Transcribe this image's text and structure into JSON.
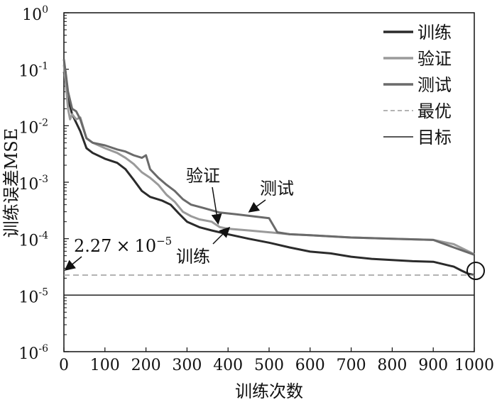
{
  "chart_data": {
    "type": "line",
    "title": "",
    "xlabel": "训练次数",
    "ylabel": "训练误差MSE",
    "xlim": [
      0,
      1000
    ],
    "ylim": [
      1e-06,
      1
    ],
    "yscale": "log",
    "grid": false,
    "legend_position": "top-right",
    "x_ticks": [
      0,
      100,
      200,
      300,
      400,
      500,
      600,
      700,
      800,
      900,
      1000
    ],
    "y_ticks": [
      {
        "base": "10",
        "exp": "0",
        "value": 1
      },
      {
        "base": "10",
        "exp": "-1",
        "value": 0.1
      },
      {
        "base": "10",
        "exp": "-2",
        "value": 0.01
      },
      {
        "base": "10",
        "exp": "-3",
        "value": 0.001
      },
      {
        "base": "10",
        "exp": "-4",
        "value": 0.0001
      },
      {
        "base": "10",
        "exp": "-5",
        "value": 1e-05
      },
      {
        "base": "10",
        "exp": "-6",
        "value": 1e-06
      }
    ],
    "series": [
      {
        "name": "训练",
        "color": "#2b2b2b",
        "style": "solid",
        "points": [
          [
            0,
            0.09
          ],
          [
            5,
            0.06
          ],
          [
            10,
            0.03
          ],
          [
            20,
            0.016
          ],
          [
            40,
            0.008
          ],
          [
            55,
            0.004
          ],
          [
            70,
            0.0033
          ],
          [
            100,
            0.0026
          ],
          [
            130,
            0.0022
          ],
          [
            150,
            0.0017
          ],
          [
            170,
            0.0011
          ],
          [
            190,
            0.0007
          ],
          [
            210,
            0.00055
          ],
          [
            240,
            0.00047
          ],
          [
            260,
            0.0004
          ],
          [
            280,
            0.00028
          ],
          [
            300,
            0.0002
          ],
          [
            330,
            0.00016
          ],
          [
            360,
            0.00014
          ],
          [
            400,
            0.00012
          ],
          [
            450,
            0.0001
          ],
          [
            500,
            8.5e-05
          ],
          [
            550,
            7e-05
          ],
          [
            600,
            5.9e-05
          ],
          [
            650,
            5.5e-05
          ],
          [
            700,
            4.8e-05
          ],
          [
            750,
            4.4e-05
          ],
          [
            800,
            4.2e-05
          ],
          [
            850,
            4e-05
          ],
          [
            900,
            3.9e-05
          ],
          [
            950,
            3.2e-05
          ],
          [
            970,
            2.7e-05
          ],
          [
            985,
            2.4e-05
          ],
          [
            1000,
            2.27e-05
          ]
        ]
      },
      {
        "name": "验证",
        "color": "#9a9a9a",
        "style": "solid",
        "points": [
          [
            0,
            0.12
          ],
          [
            5,
            0.05
          ],
          [
            10,
            0.02
          ],
          [
            15,
            0.013
          ],
          [
            20,
            0.016
          ],
          [
            30,
            0.013
          ],
          [
            40,
            0.014
          ],
          [
            55,
            0.006
          ],
          [
            70,
            0.005
          ],
          [
            100,
            0.004
          ],
          [
            130,
            0.0033
          ],
          [
            150,
            0.0027
          ],
          [
            170,
            0.0021
          ],
          [
            190,
            0.0015
          ],
          [
            210,
            0.0012
          ],
          [
            230,
            0.0009
          ],
          [
            250,
            0.0006
          ],
          [
            270,
            0.00045
          ],
          [
            290,
            0.0003
          ],
          [
            310,
            0.00025
          ],
          [
            330,
            0.00022
          ],
          [
            360,
            0.0002
          ],
          [
            380,
            0.00016
          ],
          [
            400,
            0.00015
          ],
          [
            450,
            0.00014
          ],
          [
            500,
            0.00013
          ],
          [
            550,
            0.00012
          ],
          [
            600,
            0.000115
          ],
          [
            700,
            0.000105
          ],
          [
            800,
            0.0001
          ],
          [
            900,
            9.5e-05
          ],
          [
            950,
            8e-05
          ],
          [
            1000,
            5.3e-05
          ]
        ]
      },
      {
        "name": "测试",
        "color": "#6a6a6a",
        "style": "solid",
        "points": [
          [
            0,
            0.15
          ],
          [
            5,
            0.08
          ],
          [
            10,
            0.04
          ],
          [
            20,
            0.02
          ],
          [
            30,
            0.018
          ],
          [
            40,
            0.013
          ],
          [
            55,
            0.006
          ],
          [
            70,
            0.005
          ],
          [
            100,
            0.0045
          ],
          [
            130,
            0.0038
          ],
          [
            150,
            0.0035
          ],
          [
            170,
            0.003
          ],
          [
            190,
            0.0027
          ],
          [
            200,
            0.003
          ],
          [
            210,
            0.0017
          ],
          [
            230,
            0.0012
          ],
          [
            250,
            0.0009
          ],
          [
            270,
            0.0007
          ],
          [
            290,
            0.0005
          ],
          [
            310,
            0.0004
          ],
          [
            340,
            0.00035
          ],
          [
            380,
            0.00029
          ],
          [
            420,
            0.00027
          ],
          [
            460,
            0.00025
          ],
          [
            500,
            0.00023
          ],
          [
            520,
            0.00013
          ],
          [
            550,
            0.00012
          ],
          [
            600,
            0.000115
          ],
          [
            700,
            0.000105
          ],
          [
            800,
            0.0001
          ],
          [
            900,
            9.5e-05
          ],
          [
            950,
            7e-05
          ],
          [
            1000,
            5.2e-05
          ]
        ]
      },
      {
        "name": "最优",
        "color": "#9a9a9a",
        "style": "dashed",
        "points": [
          [
            0,
            2.27e-05
          ],
          [
            1000,
            2.27e-05
          ]
        ]
      },
      {
        "name": "目标",
        "color": "#222222",
        "style": "solid",
        "points": [
          [
            0,
            1e-05
          ],
          [
            1000,
            1e-05
          ]
        ]
      }
    ],
    "annotations": {
      "best_value": {
        "mantissa": "2.27",
        "times": "×",
        "base": "10",
        "exp": "−5",
        "value": 2.27e-05
      },
      "validation_label": "验证",
      "test_label": "测试",
      "training_label": "训练"
    }
  }
}
